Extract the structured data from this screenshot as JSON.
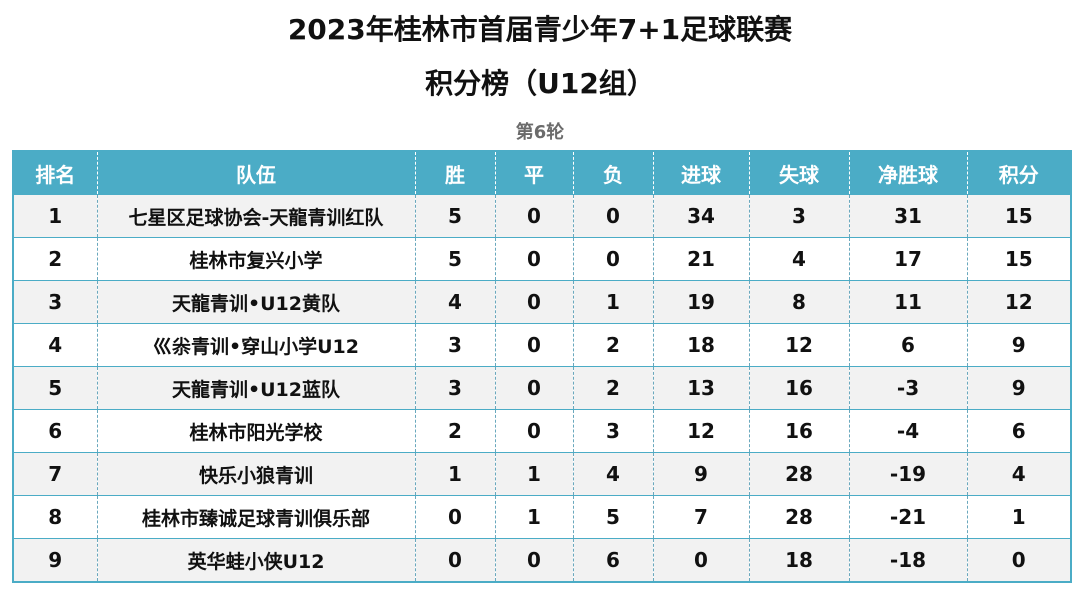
{
  "title_line1": "2023年桂林市首届青少年7+1足球联赛",
  "title_line2": "积分榜（U12组）",
  "round_label": "第6轮",
  "columns": [
    "排名",
    "队伍",
    "胜",
    "平",
    "负",
    "进球",
    "失球",
    "净胜球",
    "积分"
  ],
  "rows": [
    [
      "1",
      "七星区足球协会-天龍青训红队",
      "5",
      "0",
      "0",
      "34",
      "3",
      "31",
      "15"
    ],
    [
      "2",
      "桂林市复兴小学",
      "5",
      "0",
      "0",
      "21",
      "4",
      "17",
      "15"
    ],
    [
      "3",
      "天龍青训•U12黄队",
      "4",
      "0",
      "1",
      "19",
      "8",
      "11",
      "12"
    ],
    [
      "4",
      "巛尜青训•穿山小学U12",
      "3",
      "0",
      "2",
      "18",
      "12",
      "6",
      "9"
    ],
    [
      "5",
      "天龍青训•U12蓝队",
      "3",
      "0",
      "2",
      "13",
      "16",
      "-3",
      "9"
    ],
    [
      "6",
      "桂林市阳光学校",
      "2",
      "0",
      "3",
      "12",
      "16",
      "-4",
      "6"
    ],
    [
      "7",
      "快乐小狼青训",
      "1",
      "1",
      "4",
      "9",
      "28",
      "-19",
      "4"
    ],
    [
      "8",
      "桂林市臻诚足球青训俱乐部",
      "0",
      "1",
      "5",
      "7",
      "28",
      "-21",
      "1"
    ],
    [
      "9",
      "英华蛙小侠U12",
      "0",
      "0",
      "6",
      "0",
      "18",
      "-18",
      "0"
    ]
  ],
  "colors": {
    "header_bg": "#4bacc6",
    "round_text": "#6b6b6b"
  }
}
